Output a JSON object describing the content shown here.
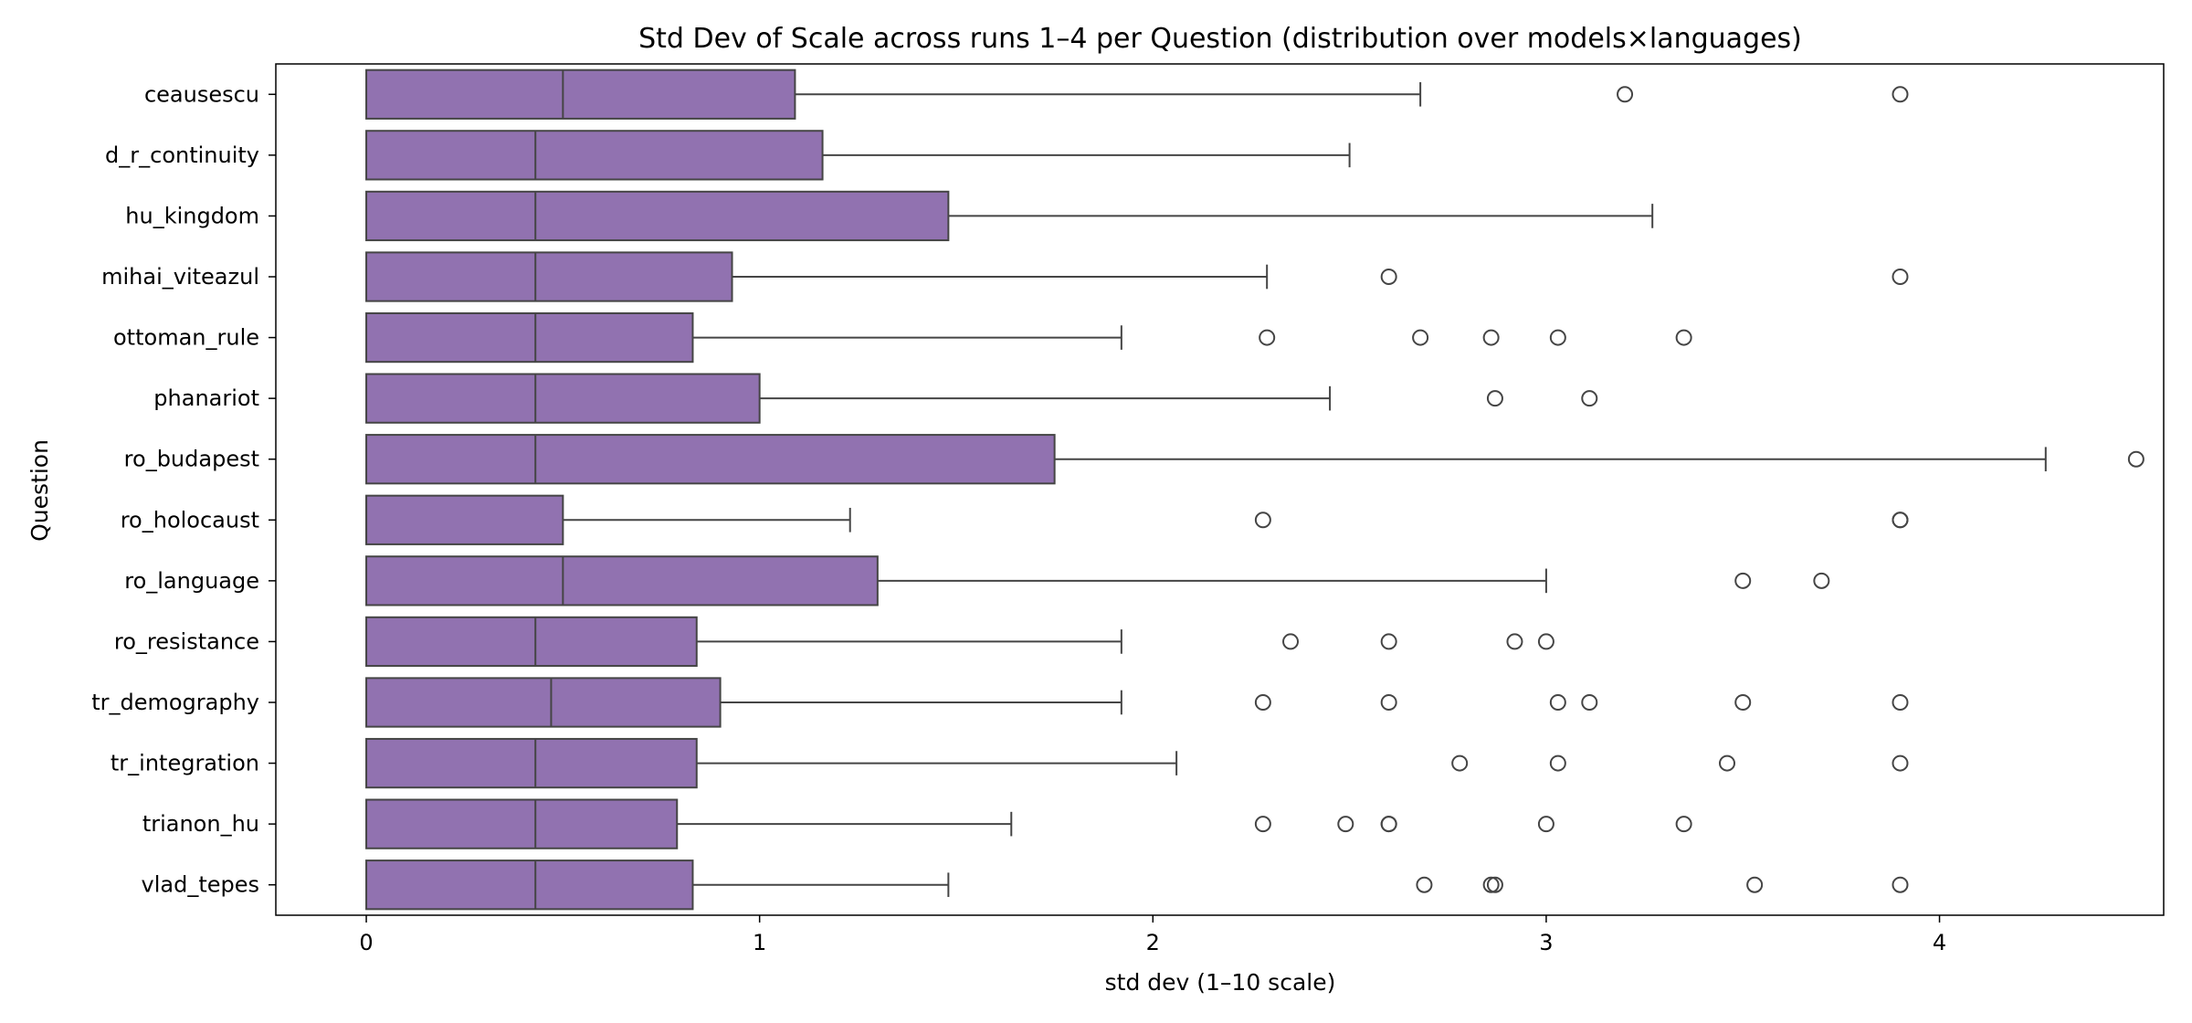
{
  "chart_data": {
    "type": "boxplot",
    "orientation": "horizontal",
    "title": "Std Dev of Scale across runs 1–4 per Question (distribution over models×languages)",
    "xlabel": "std dev (1–10 scale)",
    "ylabel": "Question",
    "xlim": [
      -0.23,
      4.57
    ],
    "xticks": [
      0,
      1,
      2,
      3,
      4
    ],
    "grid": false,
    "colors": {
      "box": "#9172b0",
      "line": "#454545",
      "frame": "#000000"
    },
    "categories": [
      "ceausescu",
      "d_r_continuity",
      "hu_kingdom",
      "mihai_viteazul",
      "ottoman_rule",
      "phanariot",
      "ro_budapest",
      "ro_holocaust",
      "ro_language",
      "ro_resistance",
      "tr_demography",
      "tr_integration",
      "trianon_hu",
      "vlad_tepes"
    ],
    "boxes": [
      {
        "category": "ceausescu",
        "q1": 0,
        "median": 0.5,
        "q3": 1.09,
        "whisker_low": 0,
        "whisker_high": 2.68,
        "outliers": [
          3.2,
          3.9
        ]
      },
      {
        "category": "d_r_continuity",
        "q1": 0,
        "median": 0.43,
        "q3": 1.16,
        "whisker_low": 0,
        "whisker_high": 2.5,
        "outliers": []
      },
      {
        "category": "hu_kingdom",
        "q1": 0,
        "median": 0.43,
        "q3": 1.48,
        "whisker_low": 0,
        "whisker_high": 3.27,
        "outliers": []
      },
      {
        "category": "mihai_viteazul",
        "q1": 0,
        "median": 0.43,
        "q3": 0.93,
        "whisker_low": 0,
        "whisker_high": 2.29,
        "outliers": [
          2.6,
          3.9
        ]
      },
      {
        "category": "ottoman_rule",
        "q1": 0,
        "median": 0.43,
        "q3": 0.83,
        "whisker_low": 0,
        "whisker_high": 1.92,
        "outliers": [
          2.29,
          2.68,
          2.86,
          3.03,
          3.35
        ]
      },
      {
        "category": "phanariot",
        "q1": 0,
        "median": 0.43,
        "q3": 1.0,
        "whisker_low": 0,
        "whisker_high": 2.45,
        "outliers": [
          2.87,
          3.11
        ]
      },
      {
        "category": "ro_budapest",
        "q1": 0,
        "median": 0.43,
        "q3": 1.75,
        "whisker_low": 0,
        "whisker_high": 4.27,
        "outliers": [
          4.5
        ]
      },
      {
        "category": "ro_holocaust",
        "q1": 0,
        "median": 0,
        "q3": 0.5,
        "whisker_low": 0,
        "whisker_high": 1.23,
        "outliers": [
          2.28,
          3.9,
          3.9
        ]
      },
      {
        "category": "ro_language",
        "q1": 0,
        "median": 0.5,
        "q3": 1.3,
        "whisker_low": 0,
        "whisker_high": 3.0,
        "outliers": [
          3.5,
          3.7
        ]
      },
      {
        "category": "ro_resistance",
        "q1": 0,
        "median": 0.43,
        "q3": 0.84,
        "whisker_low": 0,
        "whisker_high": 1.92,
        "outliers": [
          2.35,
          2.6,
          2.92,
          3.0
        ]
      },
      {
        "category": "tr_demography",
        "q1": 0,
        "median": 0.47,
        "q3": 0.9,
        "whisker_low": 0,
        "whisker_high": 1.92,
        "outliers": [
          2.28,
          2.6,
          3.03,
          3.11,
          3.5,
          3.9
        ]
      },
      {
        "category": "tr_integration",
        "q1": 0,
        "median": 0.43,
        "q3": 0.84,
        "whisker_low": 0,
        "whisker_high": 2.06,
        "outliers": [
          2.78,
          3.03,
          3.46,
          3.9
        ]
      },
      {
        "category": "trianon_hu",
        "q1": 0,
        "median": 0.43,
        "q3": 0.79,
        "whisker_low": 0,
        "whisker_high": 1.64,
        "outliers": [
          2.28,
          2.49,
          2.6,
          2.6,
          3.0,
          3.35
        ]
      },
      {
        "category": "vlad_tepes",
        "q1": 0,
        "median": 0.43,
        "q3": 0.83,
        "whisker_low": 0,
        "whisker_high": 1.48,
        "outliers": [
          2.69,
          2.86,
          2.87,
          3.53,
          3.9
        ]
      }
    ]
  }
}
